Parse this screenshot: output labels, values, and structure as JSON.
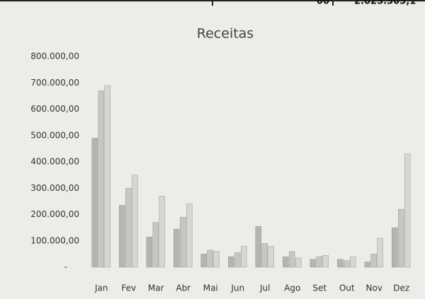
{
  "header_fragment": {
    "cells": [
      "00",
      "2.025.303,1"
    ]
  },
  "chart_data": {
    "type": "bar",
    "title": "Receitas",
    "categories": [
      "Jan",
      "Fev",
      "Mar",
      "Abr",
      "Mai",
      "Jun",
      "Jul",
      "Ago",
      "Set",
      "Out",
      "Nov",
      "Dez"
    ],
    "series": [
      {
        "color": "#b4b4b0",
        "values": [
          490000,
          235000,
          115000,
          145000,
          50000,
          40000,
          155000,
          40000,
          30000,
          30000,
          20000,
          150000
        ]
      },
      {
        "color": "#c6c6c2",
        "values": [
          670000,
          300000,
          170000,
          190000,
          65000,
          55000,
          90000,
          60000,
          40000,
          25000,
          50000,
          220000
        ]
      },
      {
        "color": "#d6d6d2",
        "values": [
          690000,
          350000,
          270000,
          240000,
          60000,
          80000,
          80000,
          35000,
          45000,
          40000,
          110000,
          430000
        ]
      }
    ],
    "ylim": [
      0,
      800000
    ],
    "yticks": [
      {
        "value": 0,
        "label": "-"
      },
      {
        "value": 100000,
        "label": "100.000,00"
      },
      {
        "value": 200000,
        "label": "200.000,00"
      },
      {
        "value": 300000,
        "label": "300.000,00"
      },
      {
        "value": 400000,
        "label": "400.000,00"
      },
      {
        "value": 500000,
        "label": "500.000,00"
      },
      {
        "value": 600000,
        "label": "600.000,00"
      },
      {
        "value": 700000,
        "label": "700.000,00"
      },
      {
        "value": 800000,
        "label": "800.000,00"
      }
    ],
    "grid": false
  }
}
